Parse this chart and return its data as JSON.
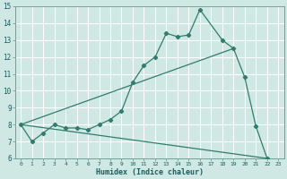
{
  "xlabel": "Humidex (Indice chaleur)",
  "bg_color": "#cfe8e4",
  "grid_color": "#ffffff",
  "line_color": "#2e7d6e",
  "line1_x": [
    0,
    1,
    2,
    3,
    4,
    5,
    6,
    7,
    8,
    9,
    10,
    11,
    12,
    13,
    14,
    15,
    16,
    18,
    19,
    20,
    21,
    22
  ],
  "line1_y": [
    8.0,
    7.0,
    7.5,
    8.0,
    7.8,
    7.8,
    7.7,
    8.0,
    8.3,
    8.8,
    10.5,
    11.5,
    12.0,
    13.4,
    13.2,
    13.3,
    14.8,
    13.0,
    12.5,
    10.8,
    7.9,
    6.0
  ],
  "line2_x": [
    0,
    19
  ],
  "line2_y": [
    8.0,
    12.5
  ],
  "line3_x": [
    0,
    22
  ],
  "line3_y": [
    8.0,
    6.0
  ],
  "ylim": [
    6,
    15
  ],
  "xlim": [
    -0.5,
    23.5
  ],
  "yticks": [
    6,
    7,
    8,
    9,
    10,
    11,
    12,
    13,
    14,
    15
  ],
  "xticks": [
    0,
    1,
    2,
    3,
    4,
    5,
    6,
    7,
    8,
    9,
    10,
    11,
    12,
    13,
    14,
    15,
    16,
    17,
    18,
    19,
    20,
    21,
    22,
    23
  ]
}
